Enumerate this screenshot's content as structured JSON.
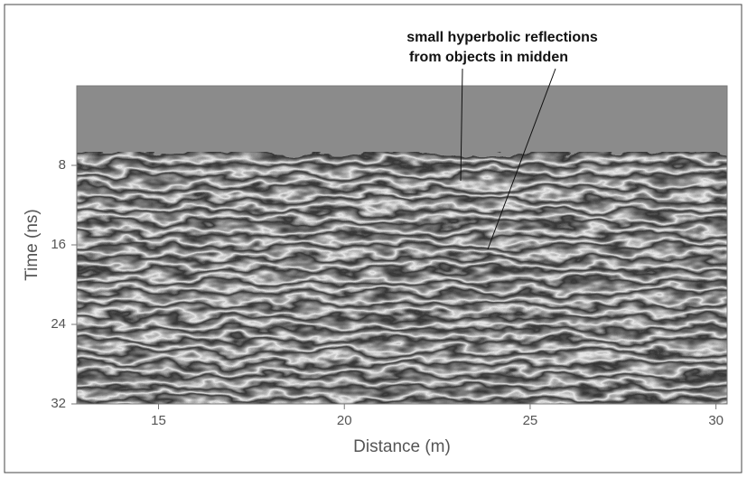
{
  "chart_data": {
    "type": "radargram",
    "xlabel": "Distance (m)",
    "ylabel": "Time (ns)",
    "annotations": [
      "small hyperbolic reflections",
      "from objects in midden"
    ],
    "xlim": [
      12.8,
      30.3
    ],
    "xticks": [
      15,
      20,
      25,
      30
    ],
    "ylim": [
      0,
      32
    ],
    "yticks": [
      8,
      16,
      24,
      32
    ],
    "y_inverted": true
  }
}
